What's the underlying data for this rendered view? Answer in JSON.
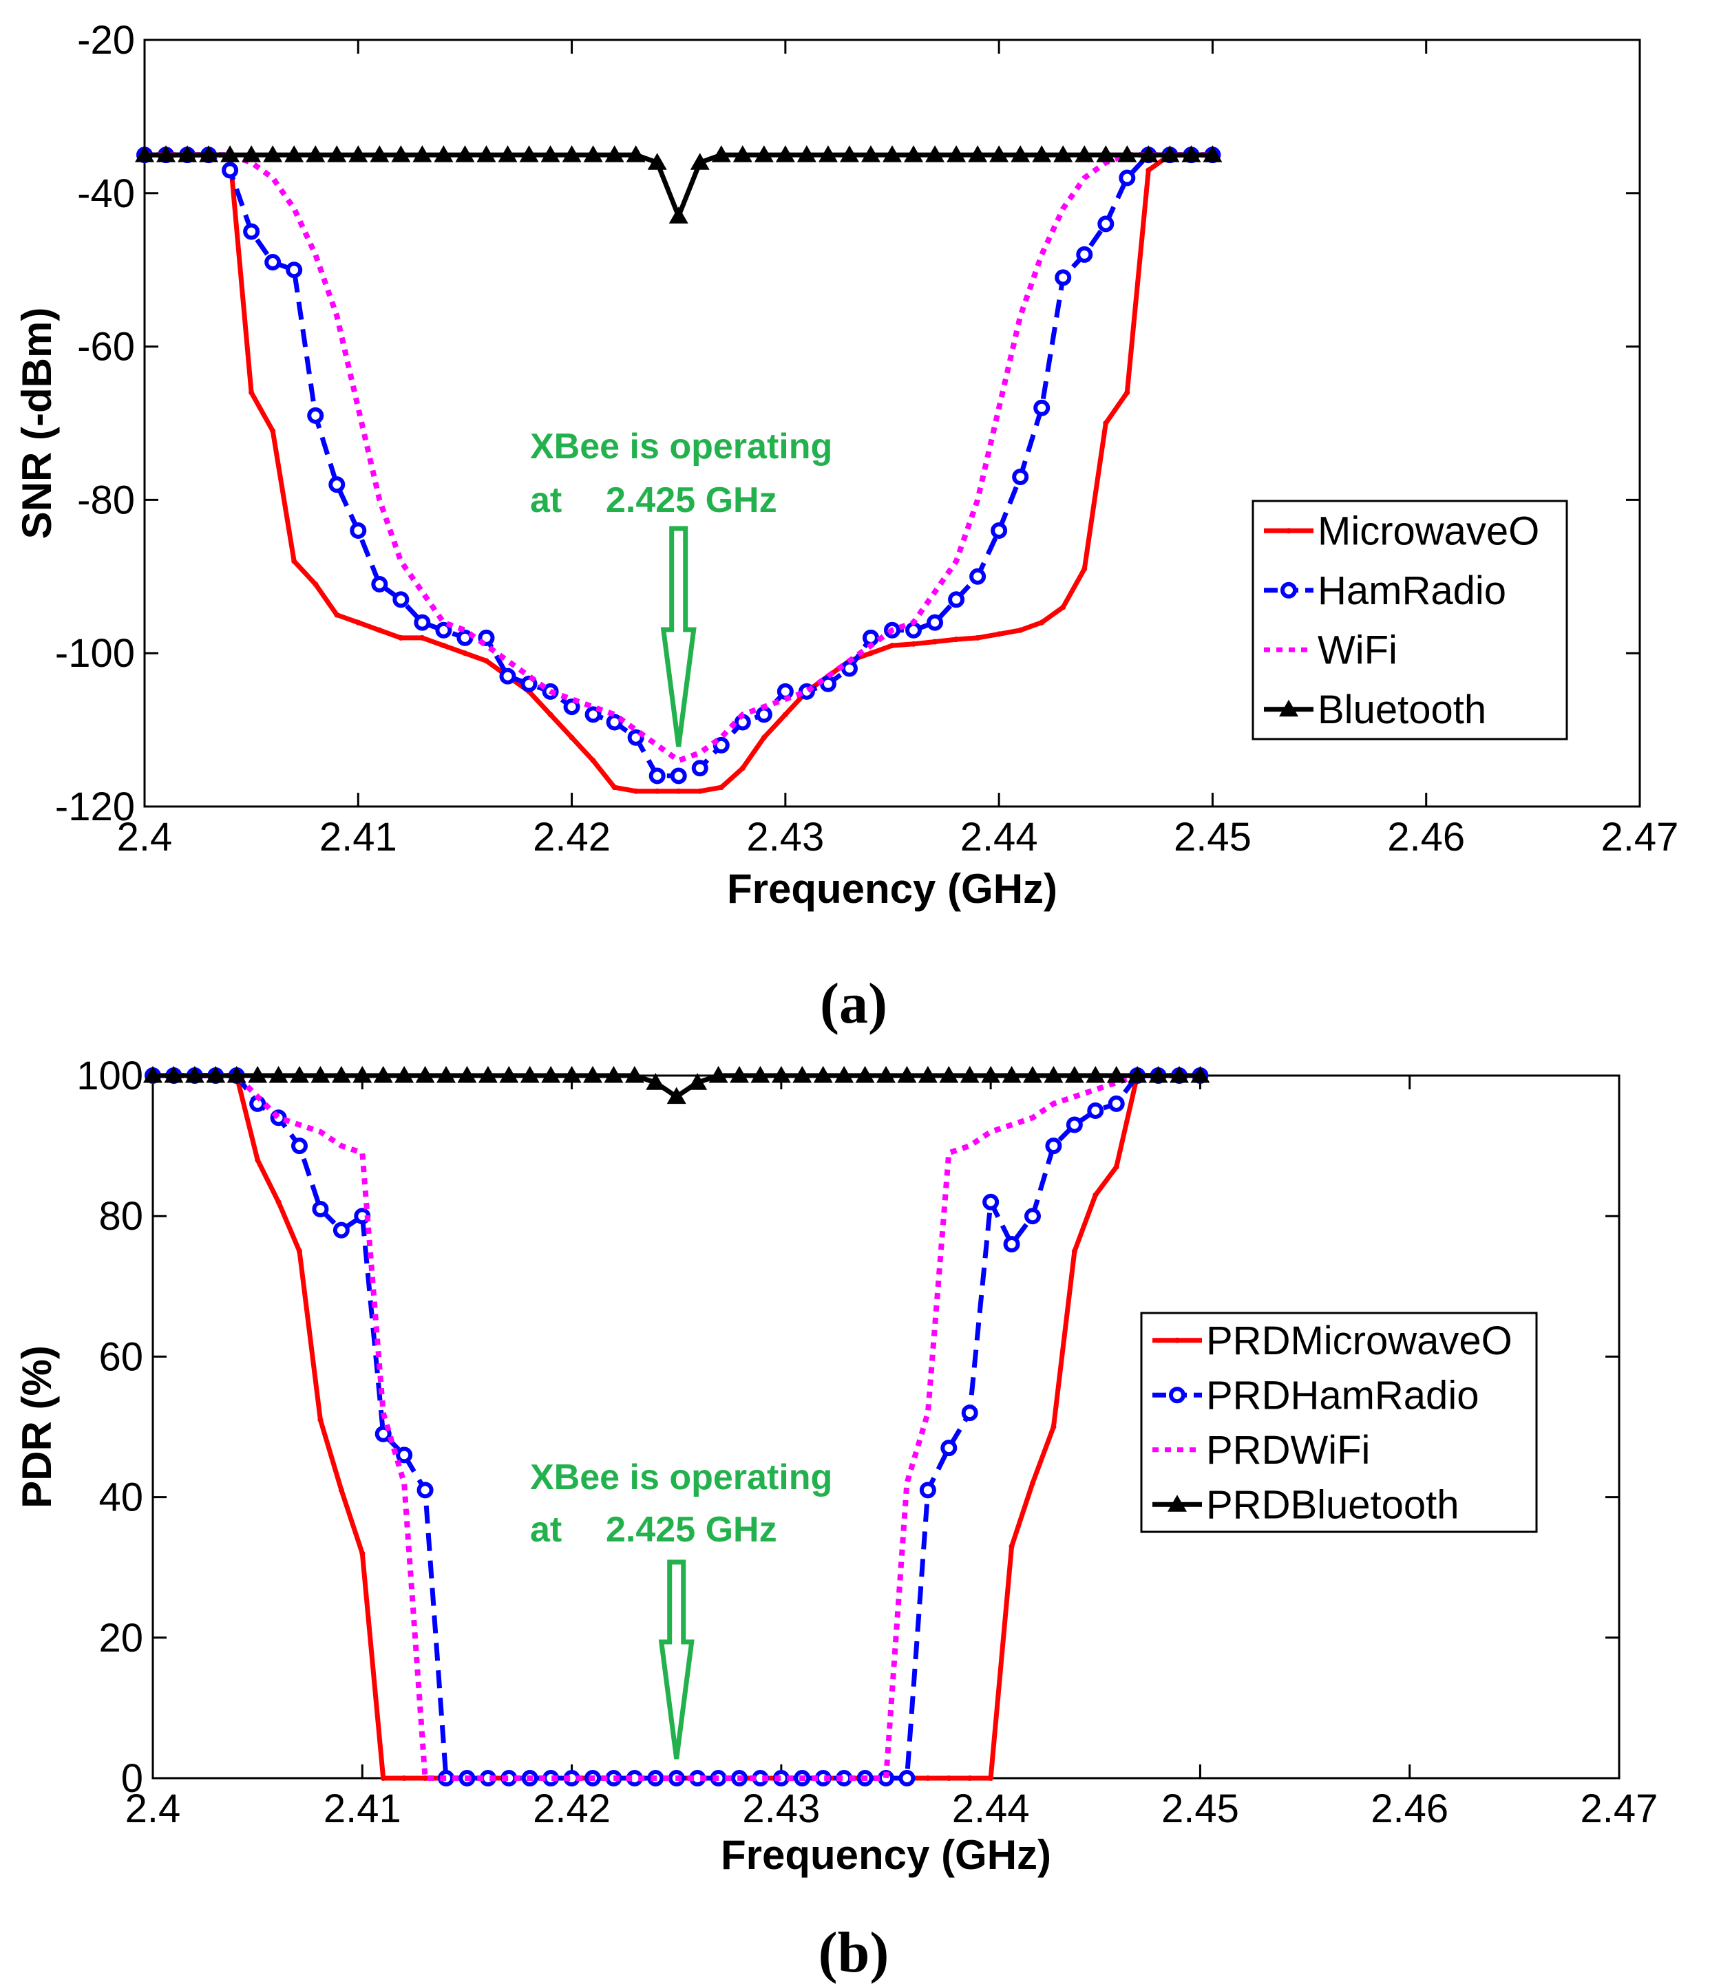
{
  "chart_data": [
    {
      "type": "line",
      "panel": "(a)",
      "xlabel": "Frequency (GHz)",
      "ylabel": "SNR (-dBm)",
      "xlim": [
        2.4,
        2.47
      ],
      "ylim": [
        -120,
        -20
      ],
      "xticks": [
        "2.4",
        "2.41",
        "2.42",
        "2.43",
        "2.44",
        "2.45",
        "2.46",
        "2.47"
      ],
      "yticks": [
        "-20",
        "-40",
        "-60",
        "-80",
        "-100",
        "-120"
      ],
      "grid": false,
      "legend": "right",
      "annotation": {
        "line1": "XBee is operating",
        "line2_a": "at",
        "line2_b": "2.425 GHz",
        "x": 2.425
      },
      "series": [
        {
          "name": "MicrowaveO",
          "color": "#ff0000",
          "style": "solid",
          "marker": "dot",
          "x": [
            2.4,
            2.401,
            2.402,
            2.403,
            2.404,
            2.405,
            2.406,
            2.407,
            2.408,
            2.409,
            2.41,
            2.411,
            2.412,
            2.413,
            2.414,
            2.415,
            2.416,
            2.417,
            2.418,
            2.419,
            2.42,
            2.421,
            2.422,
            2.423,
            2.424,
            2.425,
            2.426,
            2.427,
            2.428,
            2.429,
            2.43,
            2.431,
            2.432,
            2.433,
            2.434,
            2.435,
            2.436,
            2.437,
            2.438,
            2.439,
            2.44,
            2.441,
            2.442,
            2.443,
            2.444,
            2.445,
            2.446,
            2.447,
            2.448,
            2.449,
            2.45
          ],
          "y": [
            -35,
            -35,
            -35,
            -35,
            -35,
            -66,
            -71,
            -88,
            -91,
            -95,
            -96,
            -97,
            -98,
            -98,
            -99,
            -100,
            -101,
            -103,
            -105,
            -108,
            -111,
            -114,
            -117.5,
            -118,
            -118,
            -118,
            -118,
            -117.5,
            -115,
            -111,
            -108,
            -105,
            -103,
            -101,
            -100,
            -99,
            -98.8,
            -98.5,
            -98.2,
            -98,
            -97.5,
            -97,
            -96,
            -94,
            -89,
            -70,
            -66,
            -37,
            -35,
            -35,
            -35
          ]
        },
        {
          "name": "HamRadio",
          "color": "#0000ff",
          "style": "dashed",
          "marker": "circle",
          "x": [
            2.4,
            2.401,
            2.402,
            2.403,
            2.404,
            2.405,
            2.406,
            2.407,
            2.408,
            2.409,
            2.41,
            2.411,
            2.412,
            2.413,
            2.414,
            2.415,
            2.416,
            2.417,
            2.418,
            2.419,
            2.42,
            2.421,
            2.422,
            2.423,
            2.424,
            2.425,
            2.426,
            2.427,
            2.428,
            2.429,
            2.43,
            2.431,
            2.432,
            2.433,
            2.434,
            2.435,
            2.436,
            2.437,
            2.438,
            2.439,
            2.44,
            2.441,
            2.442,
            2.443,
            2.444,
            2.445,
            2.446,
            2.447,
            2.448,
            2.449,
            2.45
          ],
          "y": [
            -35,
            -35,
            -35,
            -35,
            -37,
            -45,
            -49,
            -50,
            -69,
            -78,
            -84,
            -91,
            -93,
            -96,
            -97,
            -98,
            -98,
            -103,
            -104,
            -105,
            -107,
            -108,
            -109,
            -111,
            -116,
            -116,
            -115,
            -112,
            -109,
            -108,
            -105,
            -105,
            -104,
            -102,
            -98,
            -97,
            -97,
            -96,
            -93,
            -90,
            -84,
            -77,
            -68,
            -51,
            -48,
            -44,
            -38,
            -35,
            -35,
            -35,
            -35
          ]
        },
        {
          "name": "WiFi",
          "color": "#ff00ff",
          "style": "dotted",
          "marker": "none",
          "x": [
            2.4,
            2.401,
            2.402,
            2.403,
            2.404,
            2.405,
            2.406,
            2.407,
            2.408,
            2.409,
            2.41,
            2.411,
            2.412,
            2.413,
            2.414,
            2.415,
            2.416,
            2.417,
            2.418,
            2.419,
            2.42,
            2.421,
            2.422,
            2.423,
            2.424,
            2.425,
            2.426,
            2.427,
            2.428,
            2.429,
            2.43,
            2.431,
            2.432,
            2.433,
            2.434,
            2.435,
            2.436,
            2.437,
            2.438,
            2.439,
            2.44,
            2.441,
            2.442,
            2.443,
            2.444,
            2.445,
            2.446,
            2.447,
            2.448,
            2.449,
            2.45
          ],
          "y": [
            -35,
            -35,
            -35,
            -35,
            -35,
            -36,
            -38,
            -42,
            -48,
            -56,
            -68,
            -80,
            -88,
            -92,
            -96,
            -97,
            -99,
            -101,
            -103,
            -105,
            -106,
            -107,
            -108,
            -110,
            -112,
            -114,
            -113,
            -111,
            -108,
            -107,
            -106,
            -105,
            -103,
            -101,
            -99,
            -97,
            -96,
            -92,
            -88,
            -80,
            -68,
            -56,
            -48,
            -42,
            -38,
            -36,
            -35,
            -35,
            -35,
            -35,
            -35
          ]
        },
        {
          "name": "Bluetooth",
          "color": "#000000",
          "style": "solid",
          "marker": "triangle",
          "x": [
            2.4,
            2.401,
            2.402,
            2.403,
            2.404,
            2.405,
            2.406,
            2.407,
            2.408,
            2.409,
            2.41,
            2.411,
            2.412,
            2.413,
            2.414,
            2.415,
            2.416,
            2.417,
            2.418,
            2.419,
            2.42,
            2.421,
            2.422,
            2.423,
            2.424,
            2.425,
            2.426,
            2.427,
            2.428,
            2.429,
            2.43,
            2.431,
            2.432,
            2.433,
            2.434,
            2.435,
            2.436,
            2.437,
            2.438,
            2.439,
            2.44,
            2.441,
            2.442,
            2.443,
            2.444,
            2.445,
            2.446,
            2.447,
            2.448,
            2.449,
            2.45
          ],
          "y": [
            -35,
            -35,
            -35,
            -35,
            -35,
            -35,
            -35,
            -35,
            -35,
            -35,
            -35,
            -35,
            -35,
            -35,
            -35,
            -35,
            -35,
            -35,
            -35,
            -35,
            -35,
            -35,
            -35,
            -35,
            -36,
            -43,
            -36,
            -35,
            -35,
            -35,
            -35,
            -35,
            -35,
            -35,
            -35,
            -35,
            -35,
            -35,
            -35,
            -35,
            -35,
            -35,
            -35,
            -35,
            -35,
            -35,
            -35,
            -35,
            -35,
            -35,
            -35
          ]
        }
      ]
    },
    {
      "type": "line",
      "panel": "(b)",
      "xlabel": "Frequency (GHz)",
      "ylabel": "PDR (%)",
      "xlim": [
        2.4,
        2.47
      ],
      "ylim": [
        0,
        100
      ],
      "xticks": [
        "2.4",
        "2.41",
        "2.42",
        "2.43",
        "2.44",
        "2.45",
        "2.46",
        "2.47"
      ],
      "yticks": [
        "100",
        "80",
        "60",
        "40",
        "20",
        "0"
      ],
      "grid": false,
      "legend": "right",
      "annotation": {
        "line1": "XBee is operating",
        "line2_a": "at",
        "line2_b": "2.425 GHz",
        "x": 2.425
      },
      "series": [
        {
          "name": "PRDMicrowaveO",
          "color": "#ff0000",
          "style": "solid",
          "marker": "dot",
          "x": [
            2.4,
            2.401,
            2.402,
            2.403,
            2.404,
            2.405,
            2.406,
            2.407,
            2.408,
            2.409,
            2.41,
            2.411,
            2.412,
            2.413,
            2.414,
            2.415,
            2.416,
            2.417,
            2.418,
            2.419,
            2.42,
            2.421,
            2.422,
            2.423,
            2.424,
            2.425,
            2.426,
            2.427,
            2.428,
            2.429,
            2.43,
            2.431,
            2.432,
            2.433,
            2.434,
            2.435,
            2.436,
            2.437,
            2.438,
            2.439,
            2.44,
            2.441,
            2.442,
            2.443,
            2.444,
            2.445,
            2.446,
            2.447,
            2.448,
            2.449,
            2.45
          ],
          "y": [
            100,
            100,
            100,
            100,
            100,
            88,
            82,
            75,
            51,
            41,
            32,
            0,
            0,
            0,
            0,
            0,
            0,
            0,
            0,
            0,
            0,
            0,
            0,
            0,
            0,
            0,
            0,
            0,
            0,
            0,
            0,
            0,
            0,
            0,
            0,
            0,
            0,
            0,
            0,
            0,
            0,
            33,
            42,
            50,
            75,
            83,
            87,
            100,
            100,
            100,
            100
          ]
        },
        {
          "name": "PRDHamRadio",
          "color": "#0000ff",
          "style": "dashed",
          "marker": "circle",
          "x": [
            2.4,
            2.401,
            2.402,
            2.403,
            2.404,
            2.405,
            2.406,
            2.407,
            2.408,
            2.409,
            2.41,
            2.411,
            2.412,
            2.413,
            2.414,
            2.415,
            2.416,
            2.417,
            2.418,
            2.419,
            2.42,
            2.421,
            2.422,
            2.423,
            2.424,
            2.425,
            2.426,
            2.427,
            2.428,
            2.429,
            2.43,
            2.431,
            2.432,
            2.433,
            2.434,
            2.435,
            2.436,
            2.437,
            2.438,
            2.439,
            2.44,
            2.441,
            2.442,
            2.443,
            2.444,
            2.445,
            2.446,
            2.447,
            2.448,
            2.449,
            2.45
          ],
          "y": [
            100,
            100,
            100,
            100,
            100,
            96,
            94,
            90,
            81,
            78,
            80,
            49,
            46,
            41,
            0,
            0,
            0,
            0,
            0,
            0,
            0,
            0,
            0,
            0,
            0,
            0,
            0,
            0,
            0,
            0,
            0,
            0,
            0,
            0,
            0,
            0,
            0,
            41,
            47,
            52,
            82,
            76,
            80,
            90,
            93,
            95,
            96,
            100,
            100,
            100,
            100
          ]
        },
        {
          "name": "PRDWiFi",
          "color": "#ff00ff",
          "style": "dotted",
          "marker": "none",
          "x": [
            2.4,
            2.401,
            2.402,
            2.403,
            2.404,
            2.405,
            2.406,
            2.407,
            2.408,
            2.409,
            2.41,
            2.411,
            2.412,
            2.413,
            2.414,
            2.415,
            2.416,
            2.417,
            2.418,
            2.419,
            2.42,
            2.421,
            2.422,
            2.423,
            2.424,
            2.425,
            2.426,
            2.427,
            2.428,
            2.429,
            2.43,
            2.431,
            2.432,
            2.433,
            2.434,
            2.435,
            2.436,
            2.437,
            2.438,
            2.439,
            2.44,
            2.441,
            2.442,
            2.443,
            2.444,
            2.445,
            2.446,
            2.447,
            2.448,
            2.449,
            2.45
          ],
          "y": [
            100,
            100,
            100,
            100,
            100,
            97,
            94,
            93,
            92,
            90,
            89,
            52,
            42,
            0,
            0,
            0,
            0,
            0,
            0,
            0,
            0,
            0,
            0,
            0,
            0,
            0,
            0,
            0,
            0,
            0,
            0,
            0,
            0,
            0,
            0,
            0,
            42,
            52,
            89,
            90,
            92,
            93,
            94,
            96,
            97,
            98,
            99,
            100,
            100,
            100,
            100
          ]
        },
        {
          "name": "PRDBluetooth",
          "color": "#000000",
          "style": "solid",
          "marker": "triangle",
          "x": [
            2.4,
            2.401,
            2.402,
            2.403,
            2.404,
            2.405,
            2.406,
            2.407,
            2.408,
            2.409,
            2.41,
            2.411,
            2.412,
            2.413,
            2.414,
            2.415,
            2.416,
            2.417,
            2.418,
            2.419,
            2.42,
            2.421,
            2.422,
            2.423,
            2.424,
            2.425,
            2.426,
            2.427,
            2.428,
            2.429,
            2.43,
            2.431,
            2.432,
            2.433,
            2.434,
            2.435,
            2.436,
            2.437,
            2.438,
            2.439,
            2.44,
            2.441,
            2.442,
            2.443,
            2.444,
            2.445,
            2.446,
            2.447,
            2.448,
            2.449,
            2.45
          ],
          "y": [
            100,
            100,
            100,
            100,
            100,
            100,
            100,
            100,
            100,
            100,
            100,
            100,
            100,
            100,
            100,
            100,
            100,
            100,
            100,
            100,
            100,
            100,
            100,
            100,
            99,
            97,
            99,
            100,
            100,
            100,
            100,
            100,
            100,
            100,
            100,
            100,
            100,
            100,
            100,
            100,
            100,
            100,
            100,
            100,
            100,
            100,
            100,
            100,
            100,
            100,
            100
          ]
        }
      ]
    }
  ]
}
